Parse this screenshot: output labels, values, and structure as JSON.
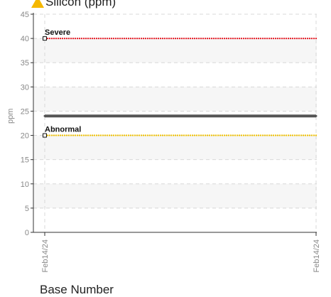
{
  "chart_data": {
    "type": "line",
    "title": "Silicon (ppm)",
    "ylabel": "ppm",
    "xlabel": "Base Number",
    "ylim": [
      0,
      45
    ],
    "yticks": [
      0,
      5,
      10,
      15,
      20,
      25,
      30,
      35,
      40,
      45
    ],
    "x_ticks": [
      "Feb14/24",
      "Feb14/24"
    ],
    "series": [
      {
        "values": [
          24,
          24
        ],
        "color": "#555555"
      }
    ],
    "thresholds": [
      {
        "label": "Severe",
        "value": 40,
        "color": "#e8202a"
      },
      {
        "label": "Abnormal",
        "value": 20,
        "color": "#f2c200"
      }
    ],
    "grid": true,
    "title_icon": "warning-triangle-icon",
    "title_icon_color": "#f5b800"
  }
}
